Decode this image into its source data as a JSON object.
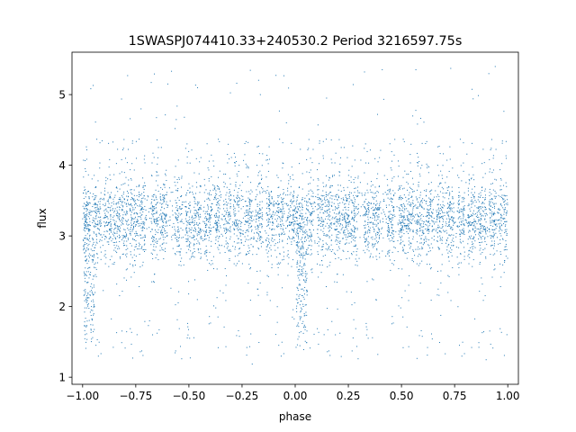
{
  "chart_data": {
    "type": "scatter",
    "title": "1SWASPJ074410.33+240530.2 Period 3216597.75s",
    "xlabel": "phase",
    "ylabel": "flux",
    "xlim": [
      -1.05,
      1.05
    ],
    "ylim": [
      0.9,
      5.6
    ],
    "xticks": [
      -1.0,
      -0.75,
      -0.5,
      -0.25,
      0.0,
      0.25,
      0.5,
      0.75,
      1.0
    ],
    "xtick_labels": [
      "−1.00",
      "−0.75",
      "−0.50",
      "−0.25",
      "0.00",
      "0.25",
      "0.50",
      "0.75",
      "1.00"
    ],
    "yticks": [
      1,
      2,
      3,
      4,
      5
    ],
    "ytick_labels": [
      "1",
      "2",
      "3",
      "4",
      "5"
    ],
    "grid": false,
    "legend": "none",
    "point_color": "#1f77b4",
    "series": [
      {
        "x_range": [
          -1.0,
          1.0
        ],
        "baseline_flux": 3.25,
        "typical_flux_range": [
          2.6,
          3.9
        ],
        "outlier_flux_range": [
          1.1,
          5.5
        ],
        "dips": [
          {
            "phase": -0.97,
            "flux_low": 1.6
          },
          {
            "phase": 0.03,
            "flux_low": 1.6
          }
        ],
        "clusters": [
          -0.98,
          -0.93,
          -0.88,
          -0.84,
          -0.8,
          -0.76,
          -0.72,
          -0.66,
          -0.62,
          -0.55,
          -0.5,
          -0.46,
          -0.41,
          -0.37,
          -0.32,
          -0.27,
          -0.22,
          -0.17,
          -0.12,
          -0.07,
          -0.02,
          0.02,
          0.07,
          0.12,
          0.16,
          0.2,
          0.24,
          0.28,
          0.34,
          0.38,
          0.45,
          0.5,
          0.54,
          0.59,
          0.63,
          0.68,
          0.73,
          0.78,
          0.83,
          0.88,
          0.93,
          0.98
        ]
      }
    ]
  }
}
